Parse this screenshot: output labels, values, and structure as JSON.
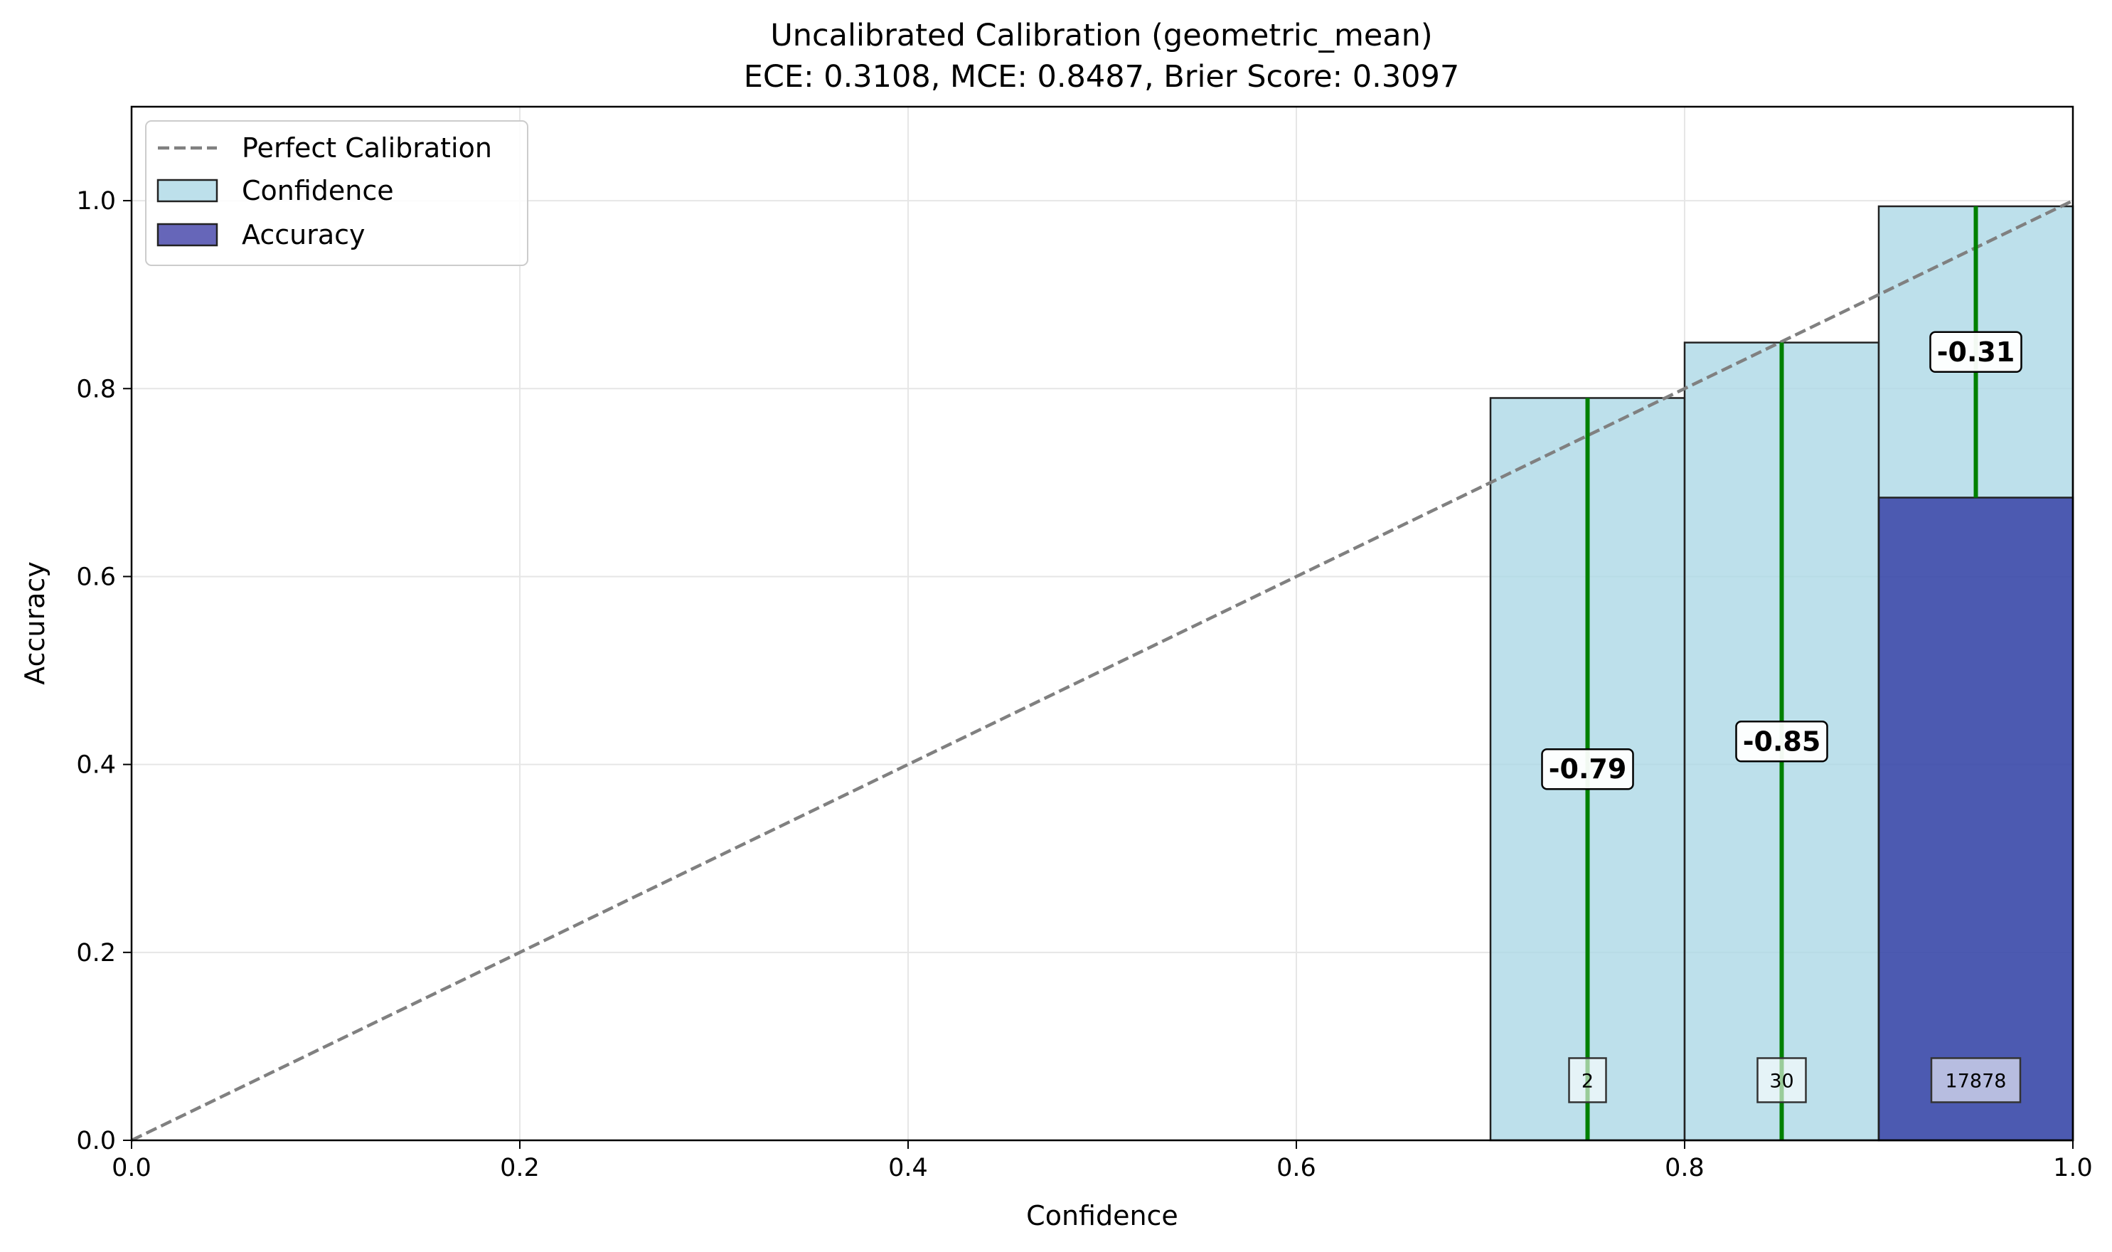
{
  "chart_data": {
    "type": "bar",
    "title": "Uncalibrated Calibration (geometric_mean)",
    "subtitle": "ECE: 0.3108, MCE: 0.8487, Brier Score: 0.3097",
    "xlabel": "Confidence",
    "ylabel": "Accuracy",
    "xlim": [
      0.0,
      1.0
    ],
    "ylim": [
      0.0,
      1.1
    ],
    "xticks": [
      "0.0",
      "0.2",
      "0.4",
      "0.6",
      "0.8",
      "1.0"
    ],
    "yticks": [
      "0.0",
      "0.2",
      "0.4",
      "0.6",
      "0.8",
      "1.0"
    ],
    "grid": true,
    "legend_position": "top-left",
    "legend": [
      "Perfect Calibration",
      "Confidence",
      "Accuracy"
    ],
    "colors": {
      "confidence": "#add8e6",
      "accuracy": "#00008b",
      "gap_line": "#008000",
      "diagonal": "#808080"
    },
    "bins": [
      {
        "bin_start": 0.7,
        "bin_end": 0.8,
        "center": 0.75,
        "confidence": 0.79,
        "accuracy": 0.0,
        "gap_label": "-0.79",
        "count": "2"
      },
      {
        "bin_start": 0.8,
        "bin_end": 0.9,
        "center": 0.85,
        "confidence": 0.849,
        "accuracy": 0.0,
        "gap_label": "-0.85",
        "count": "30"
      },
      {
        "bin_start": 0.9,
        "bin_end": 1.0,
        "center": 0.95,
        "confidence": 0.994,
        "accuracy": 0.684,
        "gap_label": "-0.31",
        "count": "17878"
      }
    ]
  }
}
